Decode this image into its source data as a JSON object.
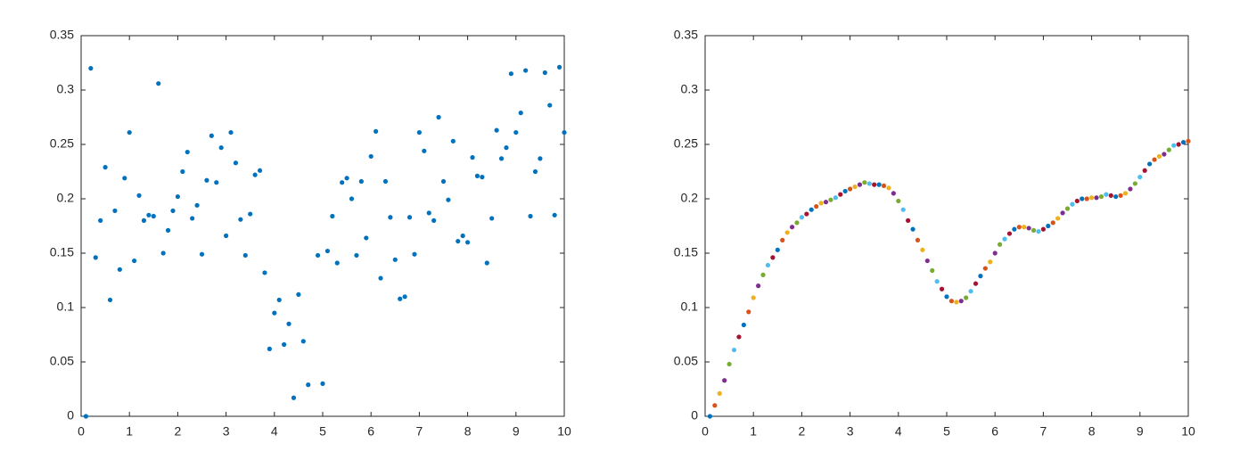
{
  "chart_data": [
    {
      "type": "scatter",
      "color": "#0072BD",
      "xlim": [
        0,
        10
      ],
      "ylim": [
        0,
        0.35
      ],
      "xticks": [
        0,
        1,
        2,
        3,
        4,
        5,
        6,
        7,
        8,
        9,
        10
      ],
      "yticks": [
        0,
        0.05,
        0.1,
        0.15,
        0.2,
        0.25,
        0.3,
        0.35
      ],
      "x": [
        0.1,
        0.2,
        0.3,
        0.4,
        0.5,
        0.6,
        0.7,
        0.8,
        0.9,
        1.0,
        1.1,
        1.2,
        1.3,
        1.4,
        1.5,
        1.6,
        1.7,
        1.8,
        1.9,
        2.0,
        2.1,
        2.2,
        2.3,
        2.4,
        2.5,
        2.6,
        2.7,
        2.8,
        2.9,
        3.0,
        3.1,
        3.2,
        3.3,
        3.4,
        3.5,
        3.6,
        3.7,
        3.8,
        3.9,
        4.0,
        4.1,
        4.2,
        4.3,
        4.4,
        4.5,
        4.6,
        4.7,
        4.9,
        5.0,
        5.1,
        5.2,
        5.3,
        5.4,
        5.5,
        5.6,
        5.7,
        5.8,
        5.9,
        6.0,
        6.1,
        6.2,
        6.3,
        6.4,
        6.5,
        6.6,
        6.7,
        6.8,
        6.9,
        7.0,
        7.1,
        7.2,
        7.3,
        7.4,
        7.5,
        7.6,
        7.7,
        7.8,
        7.9,
        8.0,
        8.1,
        8.2,
        8.3,
        8.4,
        8.5,
        8.6,
        8.7,
        8.8,
        8.9,
        9.0,
        9.1,
        9.2,
        9.3,
        9.4,
        9.5,
        9.6,
        9.7,
        9.8,
        9.9,
        10
      ],
      "values": [
        0,
        0.32,
        0.146,
        0.18,
        0.229,
        0.107,
        0.189,
        0.135,
        0.219,
        0.261,
        0.143,
        0.203,
        0.18,
        0.185,
        0.184,
        0.306,
        0.15,
        0.171,
        0.189,
        0.202,
        0.225,
        0.243,
        0.182,
        0.194,
        0.149,
        0.217,
        0.258,
        0.215,
        0.247,
        0.166,
        0.261,
        0.233,
        0.181,
        0.148,
        0.186,
        0.222,
        0.226,
        0.132,
        0.062,
        0.095,
        0.107,
        0.066,
        0.085,
        0.017,
        0.112,
        0.069,
        0.029,
        0.148,
        0.03,
        0.152,
        0.184,
        0.141,
        0.215,
        0.219,
        0.2,
        0.148,
        0.216,
        0.164,
        0.239,
        0.262,
        0.127,
        0.216,
        0.183,
        0.144,
        0.108,
        0.11,
        0.183,
        0.149,
        0.261,
        0.244,
        0.187,
        0.18,
        0.275,
        0.216,
        0.199,
        0.253,
        0.161,
        0.166,
        0.16,
        0.238,
        0.221,
        0.22,
        0.141,
        0.182,
        0.263,
        0.237,
        0.247,
        0.315,
        0.261,
        0.279,
        0.318,
        0.184,
        0.225,
        0.237,
        0.316,
        0.286,
        0.185,
        0.321,
        0.261
      ]
    },
    {
      "type": "scatter",
      "colors": [
        "#0072BD",
        "#D95319",
        "#EDB120",
        "#7E2F8E",
        "#77AC30",
        "#4DBEEE",
        "#A2142F"
      ],
      "xlim": [
        0,
        10
      ],
      "ylim": [
        0,
        0.35
      ],
      "xticks": [
        0,
        1,
        2,
        3,
        4,
        5,
        6,
        7,
        8,
        9,
        10
      ],
      "yticks": [
        0,
        0.05,
        0.1,
        0.15,
        0.2,
        0.25,
        0.3,
        0.35
      ],
      "x": [
        0.1,
        0.2,
        0.3,
        0.4,
        0.5,
        0.6,
        0.7,
        0.8,
        0.9,
        1.0,
        1.1,
        1.2,
        1.3,
        1.4,
        1.5,
        1.6,
        1.7,
        1.8,
        1.9,
        2.0,
        2.1,
        2.2,
        2.3,
        2.4,
        2.5,
        2.6,
        2.7,
        2.8,
        2.9,
        3.0,
        3.1,
        3.2,
        3.3,
        3.4,
        3.5,
        3.6,
        3.7,
        3.8,
        3.9,
        4.0,
        4.1,
        4.2,
        4.3,
        4.4,
        4.5,
        4.6,
        4.7,
        4.8,
        4.9,
        5.0,
        5.1,
        5.2,
        5.3,
        5.4,
        5.5,
        5.6,
        5.7,
        5.8,
        5.9,
        6.0,
        6.1,
        6.2,
        6.3,
        6.4,
        6.5,
        6.6,
        6.7,
        6.8,
        6.9,
        7.0,
        7.1,
        7.2,
        7.3,
        7.4,
        7.5,
        7.6,
        7.7,
        7.8,
        7.9,
        8.0,
        8.1,
        8.2,
        8.3,
        8.4,
        8.5,
        8.6,
        8.7,
        8.8,
        8.9,
        9.0,
        9.1,
        9.2,
        9.3,
        9.4,
        9.5,
        9.6,
        9.7,
        9.8,
        9.9,
        10
      ],
      "values": [
        0,
        0.01,
        0.021,
        0.033,
        0.048,
        0.061,
        0.073,
        0.084,
        0.096,
        0.109,
        0.12,
        0.13,
        0.139,
        0.146,
        0.153,
        0.162,
        0.169,
        0.174,
        0.178,
        0.183,
        0.186,
        0.19,
        0.193,
        0.196,
        0.197,
        0.199,
        0.201,
        0.204,
        0.207,
        0.209,
        0.211,
        0.213,
        0.215,
        0.214,
        0.213,
        0.213,
        0.212,
        0.21,
        0.205,
        0.198,
        0.19,
        0.18,
        0.172,
        0.162,
        0.153,
        0.143,
        0.134,
        0.124,
        0.117,
        0.11,
        0.106,
        0.105,
        0.106,
        0.109,
        0.115,
        0.122,
        0.129,
        0.136,
        0.142,
        0.15,
        0.158,
        0.163,
        0.168,
        0.172,
        0.174,
        0.174,
        0.173,
        0.171,
        0.17,
        0.172,
        0.175,
        0.178,
        0.182,
        0.187,
        0.191,
        0.195,
        0.198,
        0.2,
        0.2,
        0.201,
        0.201,
        0.202,
        0.204,
        0.203,
        0.202,
        0.203,
        0.205,
        0.209,
        0.214,
        0.22,
        0.226,
        0.232,
        0.236,
        0.239,
        0.241,
        0.245,
        0.249,
        0.25,
        0.252,
        0.253
      ]
    }
  ]
}
